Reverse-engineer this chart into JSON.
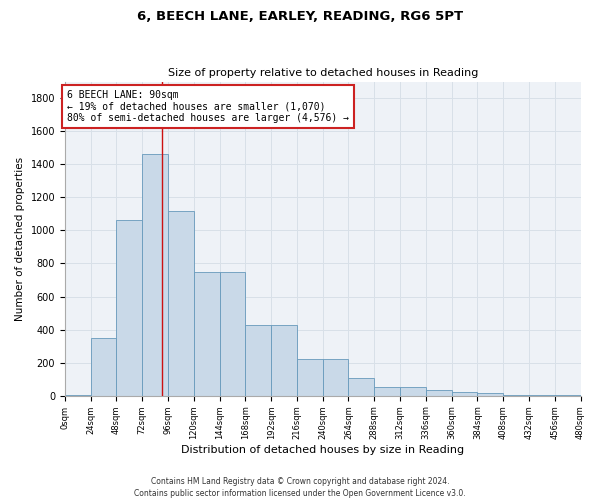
{
  "title1": "6, BEECH LANE, EARLEY, READING, RG6 5PT",
  "title2": "Size of property relative to detached houses in Reading",
  "xlabel": "Distribution of detached houses by size in Reading",
  "ylabel": "Number of detached properties",
  "footnote1": "Contains HM Land Registry data © Crown copyright and database right 2024.",
  "footnote2": "Contains public sector information licensed under the Open Government Licence v3.0.",
  "bin_edges": [
    0,
    24,
    48,
    72,
    96,
    120,
    144,
    168,
    192,
    216,
    240,
    264,
    288,
    312,
    336,
    360,
    384,
    408,
    432,
    456,
    480
  ],
  "bar_heights": [
    5,
    350,
    1060,
    1460,
    1120,
    750,
    750,
    430,
    430,
    220,
    220,
    110,
    50,
    50,
    35,
    20,
    15,
    5,
    3,
    2
  ],
  "bar_color": "#c9d9e8",
  "bar_edge_color": "#6699bb",
  "vline_x": 90,
  "vline_color": "#cc1111",
  "annotation_text": "6 BEECH LANE: 90sqm\n← 19% of detached houses are smaller (1,070)\n80% of semi-detached houses are larger (4,576) →",
  "annotation_box_color": "#ffffff",
  "annotation_box_edge": "#cc2222",
  "ylim": [
    0,
    1900
  ],
  "yticks": [
    0,
    200,
    400,
    600,
    800,
    1000,
    1200,
    1400,
    1600,
    1800
  ],
  "xtick_labels": [
    "0sqm",
    "24sqm",
    "48sqm",
    "72sqm",
    "96sqm",
    "120sqm",
    "144sqm",
    "168sqm",
    "192sqm",
    "216sqm",
    "240sqm",
    "264sqm",
    "288sqm",
    "312sqm",
    "336sqm",
    "360sqm",
    "384sqm",
    "408sqm",
    "432sqm",
    "456sqm",
    "480sqm"
  ],
  "grid_color": "#d8e0e8",
  "bg_color": "#eef2f7",
  "title1_fontsize": 9.5,
  "title2_fontsize": 8,
  "ylabel_fontsize": 7.5,
  "xlabel_fontsize": 8,
  "ytick_fontsize": 7,
  "xtick_fontsize": 6,
  "footnote_fontsize": 5.5,
  "ann_fontsize": 7
}
